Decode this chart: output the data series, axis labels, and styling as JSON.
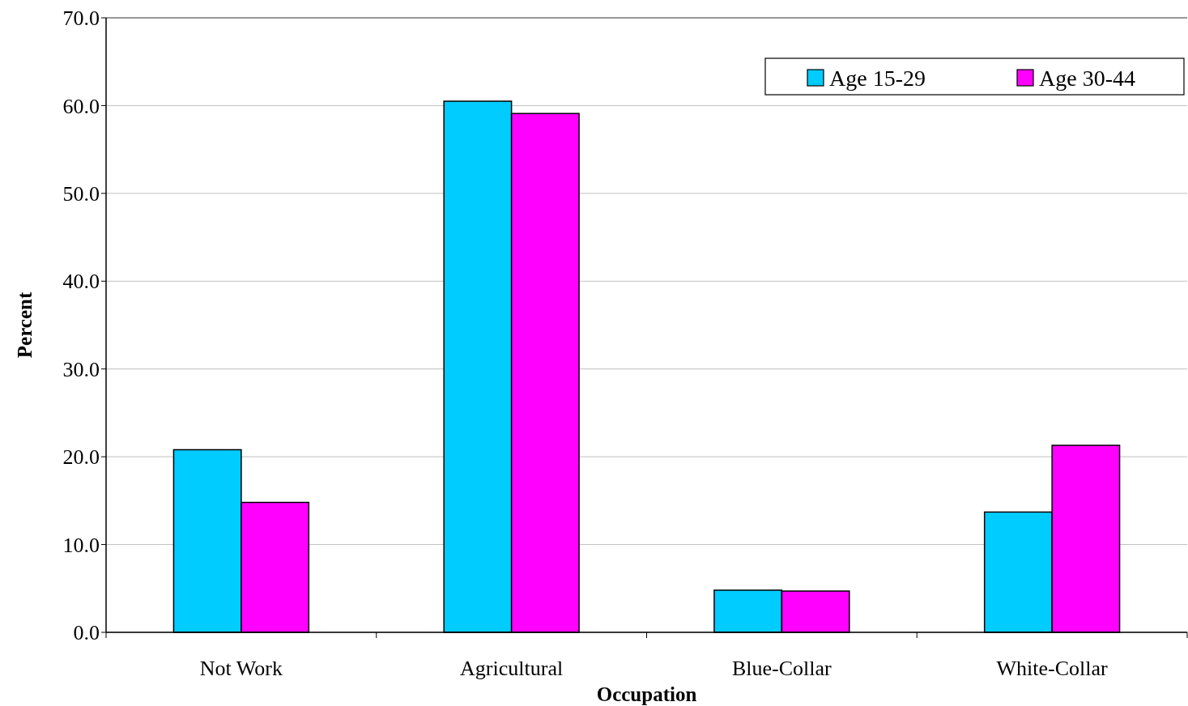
{
  "chart_data": {
    "type": "bar",
    "xlabel": "Occupation",
    "ylabel": "Percent",
    "categories": [
      "Not Work",
      "Agricultural",
      "Blue-Collar",
      "White-Collar"
    ],
    "series": [
      {
        "name": "Age 15-29",
        "color": "#00ccff",
        "values": [
          20.8,
          60.5,
          4.8,
          13.7
        ]
      },
      {
        "name": "Age 30-44",
        "color": "#ff00ff",
        "values": [
          14.8,
          59.1,
          4.7,
          21.3
        ]
      }
    ],
    "ylim": [
      0,
      70
    ],
    "yticks": [
      {
        "value": 0,
        "label": "0.0"
      },
      {
        "value": 10,
        "label": "10.0"
      },
      {
        "value": 20,
        "label": "20.0"
      },
      {
        "value": 30,
        "label": "30.0"
      },
      {
        "value": 40,
        "label": "40.0"
      },
      {
        "value": 50,
        "label": "50.0"
      },
      {
        "value": 60,
        "label": "60.0"
      },
      {
        "value": 70,
        "label": "70.0"
      }
    ],
    "grid": "y",
    "legend": "top right"
  }
}
